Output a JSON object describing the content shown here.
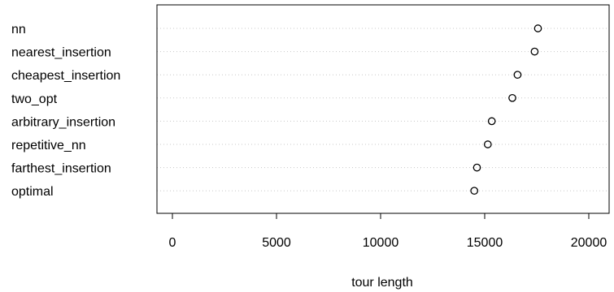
{
  "chart_data": {
    "type": "scatter",
    "categories": [
      "nn",
      "nearest_insertion",
      "cheapest_insertion",
      "two_opt",
      "arbitrary_insertion",
      "repetitive_nn",
      "farthest_insertion",
      "optimal"
    ],
    "values": [
      17560,
      17400,
      16580,
      16330,
      15340,
      15150,
      14630,
      14500
    ],
    "xlabel": "tour length",
    "ylabel": "",
    "xlim": [
      -1100,
      20800
    ],
    "xticks": [
      0,
      5000,
      10000,
      15000,
      20000
    ],
    "xtick_labels": [
      "0",
      "5000",
      "10000",
      "15000",
      "20000"
    ],
    "grid": "dotted horizontal guide lines",
    "legend": "none"
  }
}
